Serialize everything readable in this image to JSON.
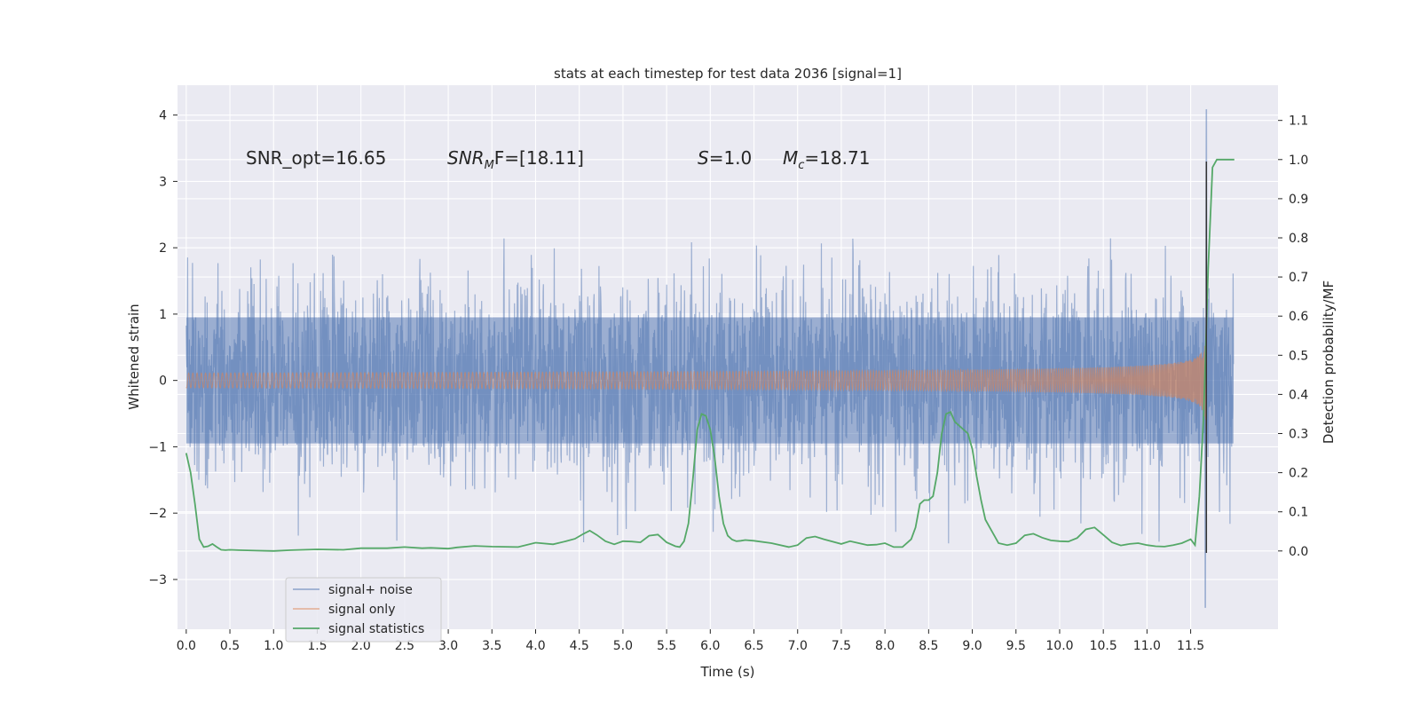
{
  "chart_data": {
    "type": "line",
    "title": "stats at each timestep for test data 2036 [signal=1]",
    "xlabel": "Time (s)",
    "ylabel_left": "Whitened strain",
    "ylabel_right": "Detection probability/MF",
    "xlim": [
      -0.1,
      12.5
    ],
    "ylim_left": [
      -3.75,
      4.45
    ],
    "ylim_right": [
      -0.2,
      1.19
    ],
    "x_ticks": [
      "0.0",
      "0.5",
      "1.0",
      "1.5",
      "2.0",
      "2.5",
      "3.0",
      "3.5",
      "4.0",
      "4.5",
      "5.0",
      "5.5",
      "6.0",
      "6.5",
      "7.0",
      "7.5",
      "8.0",
      "8.5",
      "9.0",
      "9.5",
      "10.0",
      "10.5",
      "11.0",
      "11.5"
    ],
    "y_ticks_left": [
      "4",
      "3",
      "2",
      "1",
      "0",
      "−1",
      "−2",
      "−3"
    ],
    "y_ticks_right": [
      "1.1",
      "1.0",
      "0.9",
      "0.8",
      "0.7",
      "0.6",
      "0.5",
      "0.4",
      "0.3",
      "0.2",
      "0.1",
      "0.0"
    ],
    "annotations": {
      "snr_opt": "SNR_opt=16.65",
      "snr_mf_symbol": "SNR",
      "snr_mf_sub": "M",
      "snr_mf_rest": "F=[18.11]",
      "s_symbol": "S",
      "s_value": "=1.0",
      "mc_symbol": "M",
      "mc_sub": "c",
      "mc_value": "=18.71"
    },
    "legend": {
      "position": "lower-left",
      "entries": [
        "signal+ noise",
        "signal only",
        "signal statistics"
      ]
    },
    "colors": {
      "background": "#eaeaf2",
      "grid": "#ffffff",
      "noise": "#4c72b0",
      "signal": "#dd8452",
      "stats": "#55a868"
    },
    "noise_series": {
      "name": "signal+ noise",
      "t_start": 0.0,
      "t_end": 11.99,
      "typical_range": [
        -2.0,
        2.0
      ],
      "dense_band": [
        -0.95,
        0.95
      ],
      "peak_max": 4.08,
      "peak_max_t": 11.68,
      "peak_min": -3.42,
      "peak_min_t": 11.67
    },
    "signal_series": {
      "name": "signal only",
      "type": "chirp",
      "t_start": 0.0,
      "merger_t": 11.68,
      "peak_amplitude": 3.3
    },
    "stats_series": {
      "name": "signal statistics",
      "x": [
        0.0,
        0.05,
        0.1,
        0.15,
        0.2,
        0.25,
        0.3,
        0.35,
        0.4,
        0.45,
        0.5,
        0.6,
        0.8,
        1.0,
        1.2,
        1.5,
        1.8,
        2.0,
        2.3,
        2.5,
        2.7,
        2.8,
        3.0,
        3.1,
        3.3,
        3.5,
        3.8,
        4.0,
        4.2,
        4.35,
        4.45,
        4.55,
        4.62,
        4.7,
        4.8,
        4.9,
        5.0,
        5.1,
        5.2,
        5.3,
        5.4,
        5.5,
        5.6,
        5.65,
        5.7,
        5.75,
        5.8,
        5.85,
        5.9,
        5.95,
        6.0,
        6.05,
        6.1,
        6.15,
        6.2,
        6.25,
        6.3,
        6.35,
        6.4,
        6.5,
        6.7,
        6.9,
        7.0,
        7.1,
        7.2,
        7.3,
        7.5,
        7.6,
        7.7,
        7.8,
        7.9,
        8.0,
        8.1,
        8.2,
        8.3,
        8.35,
        8.4,
        8.45,
        8.5,
        8.55,
        8.6,
        8.65,
        8.7,
        8.75,
        8.8,
        8.85,
        8.9,
        8.95,
        9.0,
        9.05,
        9.1,
        9.15,
        9.2,
        9.25,
        9.3,
        9.4,
        9.5,
        9.6,
        9.7,
        9.8,
        9.9,
        10.0,
        10.1,
        10.2,
        10.3,
        10.4,
        10.5,
        10.6,
        10.7,
        10.8,
        10.9,
        11.0,
        11.1,
        11.2,
        11.3,
        11.4,
        11.5,
        11.55,
        11.6,
        11.65,
        11.7,
        11.75,
        11.8,
        11.85,
        11.9,
        11.95,
        12.0
      ],
      "y": [
        0.25,
        0.2,
        0.12,
        0.03,
        0.01,
        0.012,
        0.018,
        0.01,
        0.003,
        0.002,
        0.003,
        0.002,
        0.001,
        0.0,
        0.002,
        0.004,
        0.003,
        0.007,
        0.007,
        0.01,
        0.007,
        0.008,
        0.006,
        0.009,
        0.013,
        0.011,
        0.01,
        0.021,
        0.017,
        0.025,
        0.031,
        0.044,
        0.052,
        0.041,
        0.025,
        0.017,
        0.025,
        0.024,
        0.022,
        0.039,
        0.042,
        0.022,
        0.012,
        0.01,
        0.025,
        0.07,
        0.18,
        0.31,
        0.35,
        0.345,
        0.31,
        0.24,
        0.14,
        0.07,
        0.039,
        0.029,
        0.025,
        0.026,
        0.028,
        0.026,
        0.02,
        0.01,
        0.015,
        0.033,
        0.037,
        0.03,
        0.018,
        0.025,
        0.02,
        0.015,
        0.016,
        0.02,
        0.01,
        0.01,
        0.03,
        0.06,
        0.12,
        0.13,
        0.13,
        0.14,
        0.2,
        0.3,
        0.35,
        0.355,
        0.33,
        0.32,
        0.31,
        0.3,
        0.26,
        0.19,
        0.13,
        0.08,
        0.06,
        0.04,
        0.02,
        0.015,
        0.02,
        0.04,
        0.044,
        0.034,
        0.027,
        0.025,
        0.024,
        0.033,
        0.055,
        0.06,
        0.041,
        0.022,
        0.014,
        0.018,
        0.02,
        0.015,
        0.012,
        0.011,
        0.015,
        0.02,
        0.03,
        0.015,
        0.14,
        0.35,
        0.72,
        0.98,
        1.0,
        1.0,
        1.0,
        1.0,
        1.0
      ]
    }
  }
}
